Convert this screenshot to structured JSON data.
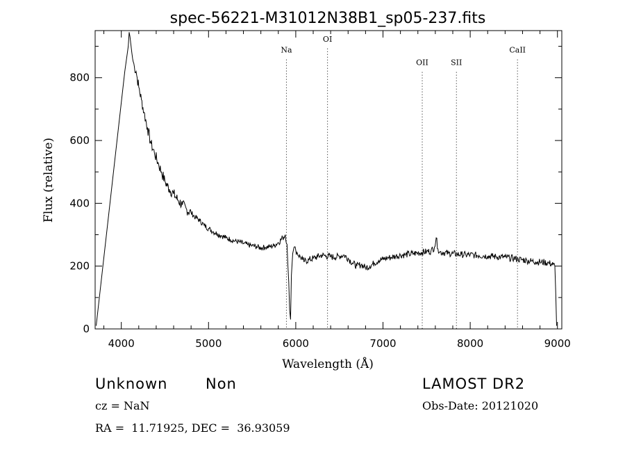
{
  "chart_data": {
    "type": "line",
    "title": "spec-56221-M31012N38B1_sp05-237.fits",
    "xlabel": "Wavelength (Å)",
    "ylabel": "Flux (relative)",
    "xlim": [
      3700,
      9050
    ],
    "ylim": [
      0,
      950
    ],
    "x_ticks": [
      4000,
      5000,
      6000,
      7000,
      8000,
      9000
    ],
    "y_ticks": [
      0,
      200,
      400,
      600,
      800
    ],
    "x_minor_step": 200,
    "y_minor_step": 100,
    "grid": false,
    "line_markers": [
      {
        "label": "Na",
        "x": 5893,
        "label_y": 880
      },
      {
        "label": "OI",
        "x": 6364,
        "label_y": 915
      },
      {
        "label": "OII",
        "x": 7450,
        "label_y": 840
      },
      {
        "label": "SII",
        "x": 7842,
        "label_y": 840
      },
      {
        "label": "CaII",
        "x": 8542,
        "label_y": 880
      }
    ],
    "series": [
      {
        "x": [
          3712,
          4040,
          4080,
          4090,
          4100,
          4110,
          4120,
          4130,
          4150,
          4170,
          4200,
          4230,
          4260,
          4300,
          4340,
          4380,
          4420,
          4460,
          4500,
          4550,
          4600,
          4650,
          4700,
          4750,
          4800,
          4850,
          4900,
          4950,
          5000,
          5050,
          5100,
          5150,
          5200,
          5250,
          5300,
          5350,
          5400,
          5450,
          5500,
          5550,
          5600,
          5650,
          5700,
          5750,
          5800,
          5850,
          5880,
          5900,
          5910,
          5920,
          5930,
          5940,
          5950,
          5965,
          5980,
          6000,
          6020,
          6050,
          6080,
          6100,
          6150,
          6200,
          6250,
          6300,
          6350,
          6400,
          6450,
          6500,
          6550,
          6600,
          6650,
          6700,
          6750,
          6800,
          6850,
          6900,
          6950,
          7000,
          7050,
          7100,
          7150,
          7200,
          7250,
          7300,
          7350,
          7400,
          7450,
          7500,
          7550,
          7590,
          7610,
          7630,
          7650,
          7700,
          7750,
          7800,
          7850,
          7900,
          7950,
          8000,
          8050,
          8100,
          8150,
          8200,
          8250,
          8300,
          8350,
          8400,
          8450,
          8500,
          8550,
          8600,
          8650,
          8700,
          8750,
          8800,
          8850,
          8900,
          8950,
          8970,
          8980,
          8990
        ],
        "y": [
          10,
          820,
          900,
          945,
          930,
          905,
          880,
          860,
          835,
          820,
          770,
          730,
          690,
          640,
          590,
          560,
          530,
          500,
          470,
          445,
          430,
          410,
          395,
          380,
          370,
          355,
          345,
          330,
          320,
          310,
          303,
          297,
          290,
          285,
          280,
          277,
          272,
          268,
          265,
          262,
          258,
          260,
          262,
          265,
          275,
          290,
          300,
          270,
          200,
          150,
          60,
          30,
          170,
          240,
          260,
          250,
          240,
          230,
          220,
          215,
          220,
          225,
          230,
          235,
          232,
          230,
          228,
          232,
          235,
          225,
          210,
          200,
          205,
          195,
          200,
          210,
          218,
          222,
          226,
          228,
          232,
          235,
          236,
          238,
          240,
          242,
          244,
          246,
          248,
          260,
          290,
          255,
          245,
          243,
          241,
          240,
          238,
          237,
          236,
          236,
          235,
          234,
          233,
          232,
          231,
          230,
          229,
          228,
          226,
          225,
          222,
          220,
          218,
          216,
          214,
          213,
          212,
          210,
          205,
          200,
          120,
          10
        ]
      }
    ]
  },
  "annotations": {
    "object_class": "Unknown",
    "subclass": "Non",
    "survey": "LAMOST DR2",
    "redshift": "cz = NaN",
    "obs_date": "Obs-Date: 20121020",
    "coordinates": "RA =  11.71925, DEC =  36.93059"
  }
}
